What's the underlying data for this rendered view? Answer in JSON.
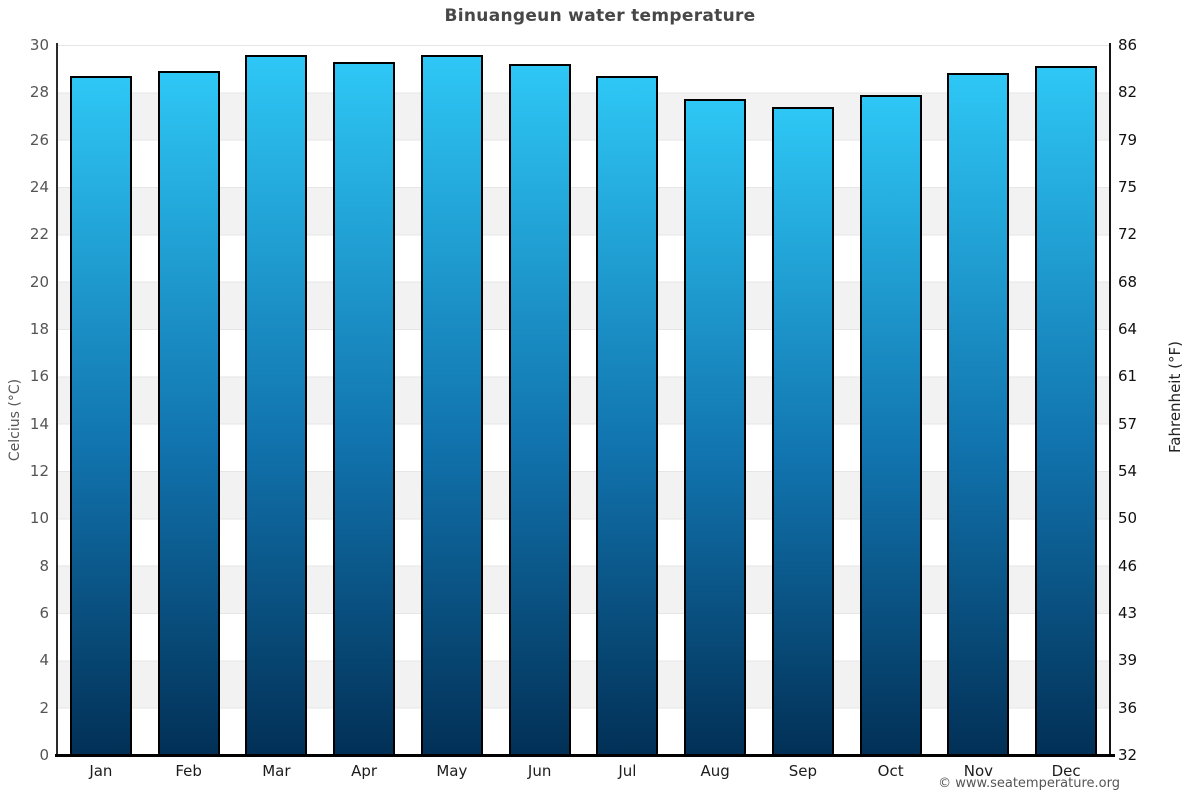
{
  "page": {
    "credit": "© www.seatemperature.org"
  },
  "chart_data": {
    "type": "bar",
    "title": "Binuangeun water temperature",
    "categories": [
      "Jan",
      "Feb",
      "Mar",
      "Apr",
      "May",
      "Jun",
      "Jul",
      "Aug",
      "Sep",
      "Oct",
      "Nov",
      "Dec"
    ],
    "series": [
      {
        "name": "Water temperature (°C)",
        "values": [
          28.7,
          28.9,
          29.6,
          29.3,
          29.6,
          29.2,
          28.7,
          27.7,
          27.4,
          27.9,
          28.8,
          29.1
        ]
      }
    ],
    "ylabel_left": "Celcius (°C)",
    "ylabel_right": "Fahrenheit (°F)",
    "ylim_celsius": [
      0,
      30
    ],
    "yticks": [
      {
        "c": 0,
        "f": "32"
      },
      {
        "c": 2,
        "f": "36"
      },
      {
        "c": 4,
        "f": "39"
      },
      {
        "c": 6,
        "f": "43"
      },
      {
        "c": 8,
        "f": "46"
      },
      {
        "c": 10,
        "f": "50"
      },
      {
        "c": 12,
        "f": "54"
      },
      {
        "c": 14,
        "f": "57"
      },
      {
        "c": 16,
        "f": "61"
      },
      {
        "c": 18,
        "f": "64"
      },
      {
        "c": 20,
        "f": "68"
      },
      {
        "c": 22,
        "f": "72"
      },
      {
        "c": 24,
        "f": "75"
      },
      {
        "c": 26,
        "f": "79"
      },
      {
        "c": 28,
        "f": "82"
      },
      {
        "c": 30,
        "f": "86"
      }
    ],
    "grid": "horizontal bands every 2°C alternating white and light gray, thin gridlines",
    "legend_position": "none",
    "colors": {
      "bar_gradient_top": "#2ec7f5",
      "bar_gradient_bottom": "#023056",
      "bar_border": "#000000",
      "band_gray": "#f2f2f2",
      "gridline": "#e6e6e6",
      "title_text": "#474747",
      "tick_text_left": "#555555",
      "tick_text_right": "#111111",
      "axis_line": "#000000"
    }
  }
}
